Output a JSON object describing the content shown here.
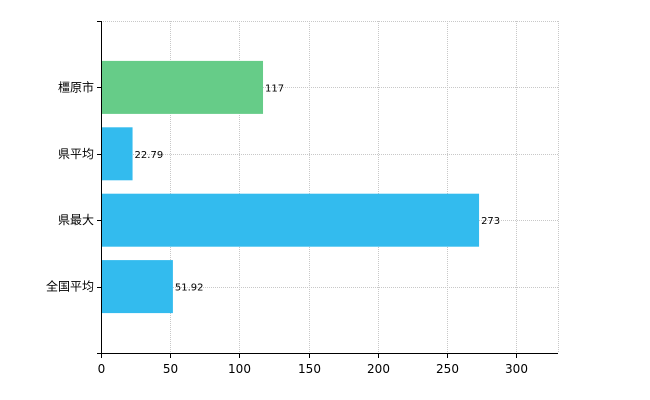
{
  "chart_data": {
    "type": "bar",
    "orientation": "horizontal",
    "categories": [
      "橿原市",
      "県平均",
      "県最大",
      "全国平均"
    ],
    "values": [
      117,
      22.79,
      273,
      51.92
    ],
    "value_labels": [
      "117",
      "22.79",
      "273",
      "51.92"
    ],
    "bar_colors": [
      "#66cc88",
      "#33bbee",
      "#33bbee",
      "#33bbee"
    ],
    "title": "",
    "xlabel": "",
    "ylabel": "",
    "xlim": [
      0,
      330
    ],
    "x_ticks": [
      0,
      50,
      100,
      150,
      200,
      250,
      300
    ],
    "grid": true,
    "legend": "none"
  }
}
